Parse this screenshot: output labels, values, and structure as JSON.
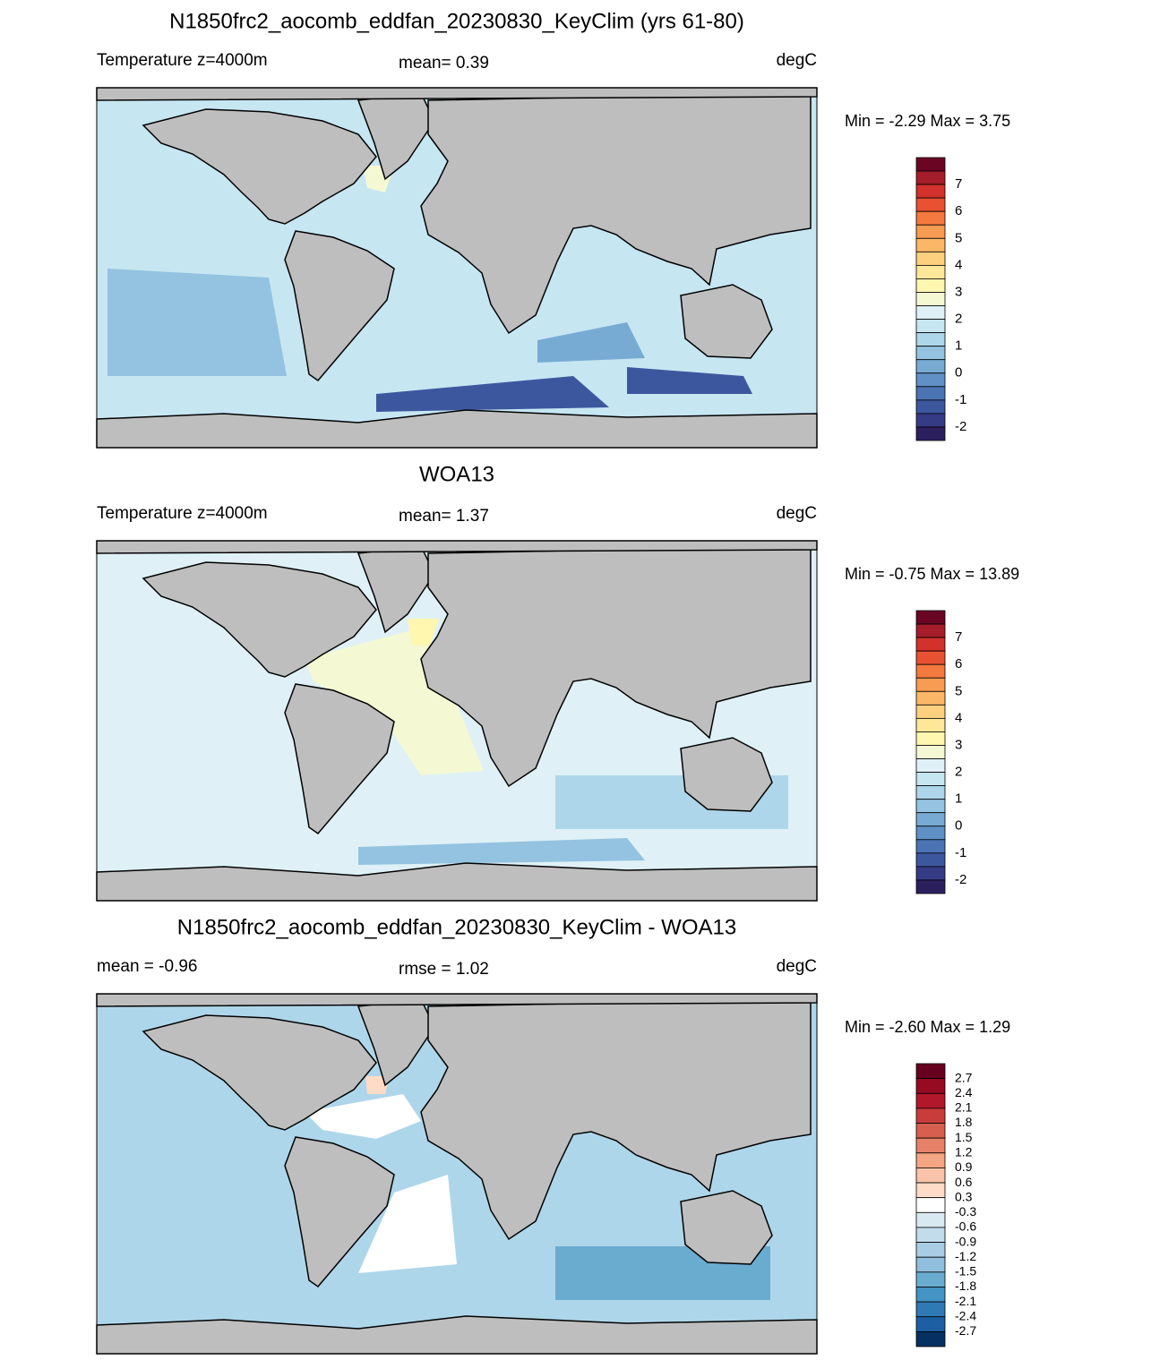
{
  "panels": [
    {
      "title": "N1850frc2_aocomb_eddfan_20230830_KeyClim (yrs 61-80)",
      "left_label": "Temperature z=4000m",
      "center_label": "mean=   0.39",
      "units": "degC",
      "minmax": "Min =  -2.29 Max =   3.75",
      "colorbar": {
        "labels": [
          "7",
          "6",
          "5",
          "4",
          "3",
          "2",
          "1",
          "0",
          "-1",
          "-2"
        ],
        "colors": [
          "#6a0624",
          "#a51c2a",
          "#d3312b",
          "#e85232",
          "#f4793f",
          "#f89b53",
          "#fbb767",
          "#fdd07f",
          "#fee799",
          "#fff6b0",
          "#f4f9d4",
          "#dff1f6",
          "#c6e6f2",
          "#aed6ea",
          "#93c3e0",
          "#78abd4",
          "#5f91c6",
          "#4b74b5",
          "#3d579f",
          "#353b85",
          "#2c1f5e"
        ]
      }
    },
    {
      "title": "WOA13",
      "left_label": "Temperature z=4000m",
      "center_label": "mean=   1.37",
      "units": "degC",
      "minmax": "Min =  -0.75 Max =  13.89",
      "colorbar": {
        "labels": [
          "7",
          "6",
          "5",
          "4",
          "3",
          "2",
          "1",
          "0",
          "-1",
          "-2"
        ],
        "colors": [
          "#6a0624",
          "#a51c2a",
          "#d3312b",
          "#e85232",
          "#f4793f",
          "#f89b53",
          "#fbb767",
          "#fdd07f",
          "#fee799",
          "#fff6b0",
          "#f4f9d4",
          "#dff1f6",
          "#c6e6f2",
          "#aed6ea",
          "#93c3e0",
          "#78abd4",
          "#5f91c6",
          "#4b74b5",
          "#3d579f",
          "#353b85",
          "#2c1f5e"
        ]
      }
    },
    {
      "title": "N1850frc2_aocomb_eddfan_20230830_KeyClim - WOA13",
      "left_label": "mean =  -0.96",
      "center_label": "rmse =   1.02",
      "units": "degC",
      "minmax": "Min =  -2.60 Max =   1.29",
      "colorbar": {
        "labels": [
          "2.7",
          "2.4",
          "2.1",
          "1.8",
          "1.5",
          "1.2",
          "0.9",
          "0.6",
          "0.3",
          "-0.3",
          "-0.6",
          "-0.9",
          "-1.2",
          "-1.5",
          "-1.8",
          "-2.1",
          "-2.4",
          "-2.7"
        ],
        "colors": [
          "#67001f",
          "#970b22",
          "#b2182b",
          "#c83c3b",
          "#d6604d",
          "#e58267",
          "#f4a582",
          "#f8c3a8",
          "#fddbc7",
          "#ffffff",
          "#d9e9f2",
          "#c2dcec",
          "#a8cde4",
          "#8fbfdd",
          "#6aacd0",
          "#4393c3",
          "#2f79b5",
          "#1d5fa2",
          "#053061"
        ]
      }
    }
  ]
}
